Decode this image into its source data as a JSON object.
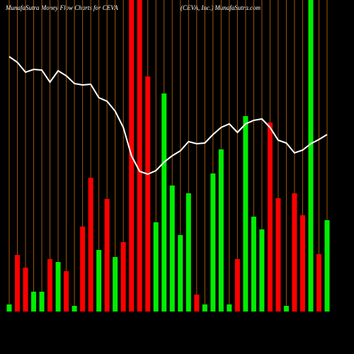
{
  "chart_data": {
    "type": "bar",
    "title": "MunafaSutra  Money Flow  Charts for CEVA",
    "subtitle": "(CEVA,  Inc.) MunafaSutra.com",
    "categories": [
      null,
      null,
      null,
      null,
      null,
      null,
      null,
      null,
      null,
      null,
      null,
      null,
      null,
      null,
      null,
      null,
      null,
      null,
      null,
      null,
      null,
      null,
      null,
      null,
      null,
      null,
      null,
      null,
      null,
      null,
      null,
      null,
      null,
      null,
      null,
      null,
      null,
      null,
      null,
      null
    ],
    "ylim": [
      0,
      440
    ],
    "bars": {
      "values": [
        10,
        80,
        62,
        28,
        28,
        74,
        70,
        57,
        8,
        120,
        189,
        87,
        159,
        77,
        98,
        440,
        440,
        332,
        126,
        308,
        178,
        108,
        167,
        24,
        10,
        195,
        229,
        10,
        74,
        276,
        134,
        116,
        267,
        160,
        8,
        167,
        136,
        440,
        81,
        129
      ],
      "colors": [
        "#00ee00",
        "#ff0000",
        "#ff0000",
        "#00ee00",
        "#00ee00",
        "#ff0000",
        "#00ee00",
        "#ff0000",
        "#00ee00",
        "#ff0000",
        "#ff0000",
        "#00ee00",
        "#ff0000",
        "#00ee00",
        "#ff0000",
        "#ff0000",
        "#ff0000",
        "#ff0000",
        "#00ee00",
        "#00ee00",
        "#00ee00",
        "#00ee00",
        "#00ee00",
        "#ff0000",
        "#00ee00",
        "#00ee00",
        "#00ee00",
        "#00ee00",
        "#ff0000",
        "#00ee00",
        "#00ee00",
        "#00ee00",
        "#ff0000",
        "#ff0000",
        "#00ee00",
        "#ff0000",
        "#ff0000",
        "#00ee00",
        "#ff0000",
        "#00ee00"
      ]
    },
    "line": {
      "color": "#ffffff",
      "values": [
        360,
        352,
        338,
        342,
        341,
        324,
        340,
        333,
        322,
        320,
        321,
        302,
        297,
        283,
        260,
        220,
        198,
        194,
        199,
        211,
        220,
        227,
        240,
        237,
        238,
        250,
        260,
        265,
        253,
        265,
        270,
        272,
        260,
        242,
        238,
        224,
        228,
        237,
        243,
        250
      ]
    },
    "grid_color": "#a0560a"
  }
}
